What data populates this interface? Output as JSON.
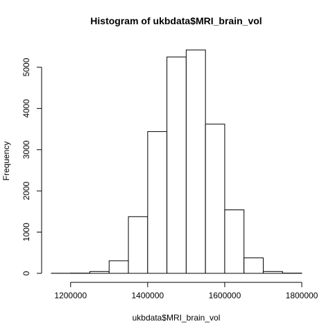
{
  "chart_data": {
    "type": "bar",
    "title": "Histogram of ukbdata$MRI_brain_vol",
    "xlabel": "ukbdata$MRI_brain_vol",
    "ylabel": "Frequency",
    "breaks": [
      1150000,
      1200000,
      1250000,
      1300000,
      1350000,
      1400000,
      1450000,
      1500000,
      1550000,
      1600000,
      1650000,
      1700000,
      1750000,
      1800000
    ],
    "values": [
      2,
      5,
      45,
      305,
      1375,
      3440,
      5250,
      5420,
      3620,
      1540,
      375,
      45,
      5
    ],
    "xlim": [
      1150000,
      1800000
    ],
    "ylim": [
      0,
      5420
    ],
    "xticks": [
      1200000,
      1400000,
      1600000,
      1800000
    ],
    "xtick_labels": [
      "1200000",
      "1400000",
      "1600000",
      "1800000"
    ],
    "yticks": [
      0,
      1000,
      2000,
      3000,
      4000,
      5000
    ],
    "ytick_labels": [
      "0",
      "1000",
      "2000",
      "3000",
      "4000",
      "5000"
    ],
    "fill_color": "#ffffff",
    "stroke_color": "#000000",
    "grid": false
  }
}
